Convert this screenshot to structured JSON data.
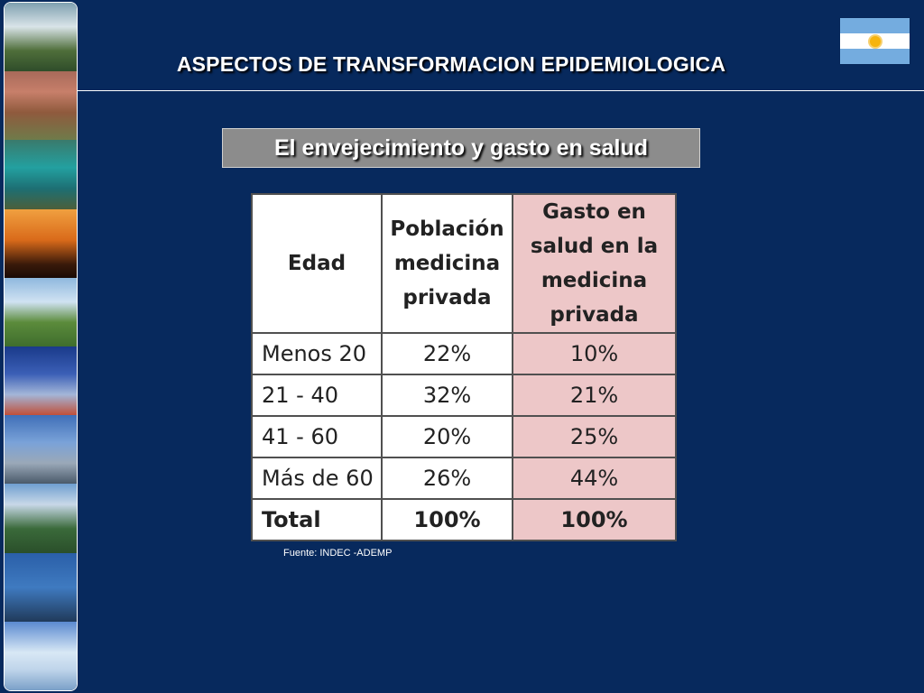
{
  "slide": {
    "title": "ASPECTOS DE TRANSFORMACION EPIDEMIOLOGICA",
    "subtitle": "El envejecimiento y gasto en salud",
    "source": "Fuente: INDEC -ADEMP"
  },
  "table": {
    "headers": {
      "age": "Edad",
      "population": "Población medicina privada",
      "spending": "Gasto en salud en la medicina privada"
    },
    "rows": [
      {
        "age": "Menos 20",
        "population": "22%",
        "spending": "10%"
      },
      {
        "age": "21 - 40",
        "population": "32%",
        "spending": "21%"
      },
      {
        "age": "41 - 60",
        "population": "20%",
        "spending": "25%"
      },
      {
        "age": "Más de 60",
        "population": "26%",
        "spending": "44%"
      },
      {
        "age": "Total",
        "population": "100%",
        "spending": "100%"
      }
    ]
  },
  "colors": {
    "background": "#07295d",
    "subtitle_box": "#8c8c8c",
    "spending_column": "#edc7c8",
    "flag_blue": "#74acdf",
    "flag_sun": "#f6b40e"
  },
  "icons": {
    "flag": "argentina-flag-icon"
  }
}
